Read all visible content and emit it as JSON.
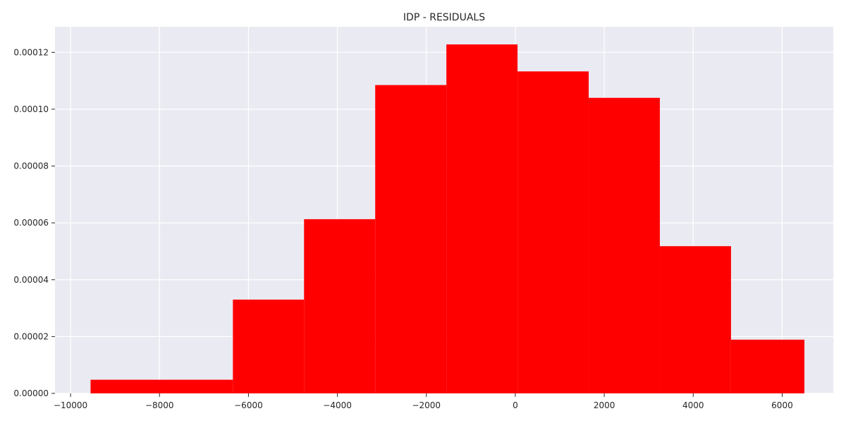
{
  "chart_data": {
    "type": "bar",
    "subtype": "histogram",
    "title": "IDP - RESIDUALS",
    "xlabel": "",
    "ylabel": "",
    "xlim": [
      -10350,
      7150
    ],
    "ylim": [
      0,
      0.000129
    ],
    "bin_edges": [
      -9550,
      -6350,
      -4750,
      -3150,
      -1550,
      50,
      1650,
      3250,
      4850,
      6500
    ],
    "values": [
      4.8e-06,
      3.3e-05,
      6.13e-05,
      0.0001085,
      0.0001228,
      0.0001133,
      0.000104,
      5.18e-05,
      1.89e-05
    ],
    "x_ticks": [
      -10000,
      -8000,
      -6000,
      -4000,
      -2000,
      0,
      2000,
      4000,
      6000
    ],
    "x_tick_labels": [
      "−10000",
      "−8000",
      "−6000",
      "−4000",
      "−2000",
      "0",
      "2000",
      "4000",
      "6000"
    ],
    "y_ticks": [
      0,
      2e-05,
      4e-05,
      6e-05,
      8e-05,
      0.0001,
      0.00012
    ],
    "y_tick_labels": [
      "0.00000",
      "0.00002",
      "0.00004",
      "0.00006",
      "0.00008",
      "0.00010",
      "0.00012"
    ],
    "grid": true,
    "colors": {
      "bar": "#ff0000",
      "plot_background": "#eaeaf2",
      "grid": "#ffffff",
      "text": "#262626"
    }
  }
}
